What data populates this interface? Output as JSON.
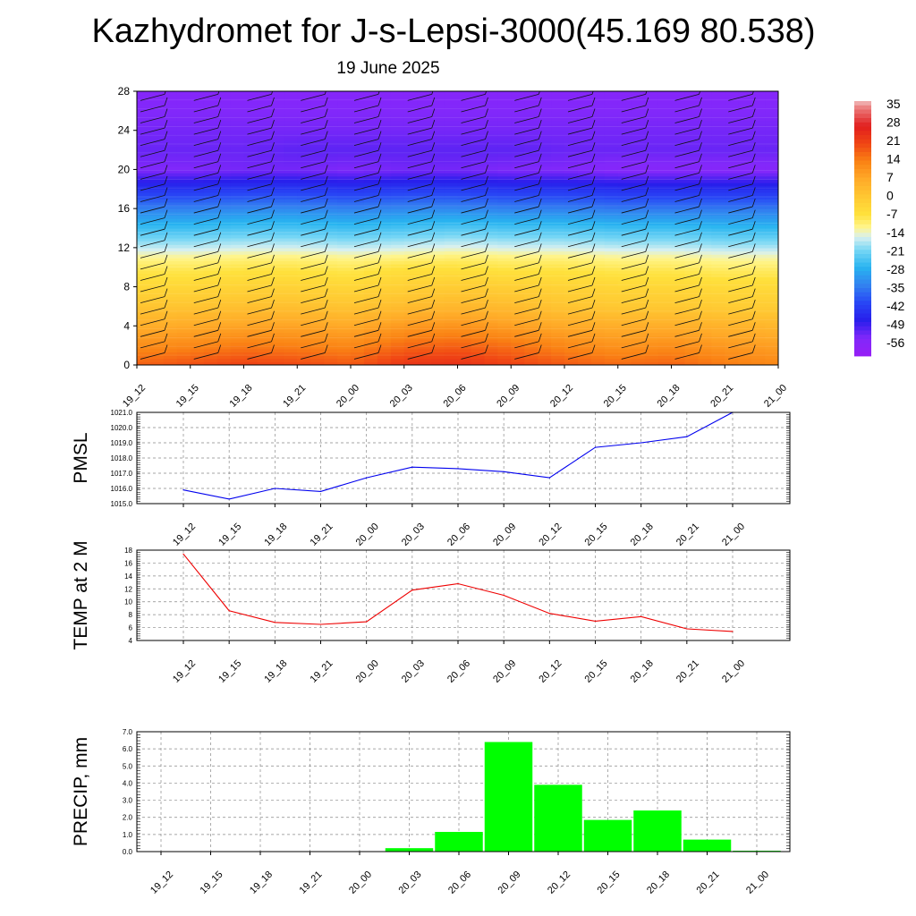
{
  "title": "Kazhydromet for J-s-Lepsi-3000(45.169 80.538)",
  "subtitle": "19 June 2025",
  "time_labels": [
    "19_12",
    "19_15",
    "19_18",
    "19_21",
    "20_00",
    "20_03",
    "20_06",
    "20_09",
    "20_12",
    "20_15",
    "20_18",
    "20_21",
    "21_00"
  ],
  "chart_data": [
    {
      "type": "heatmap",
      "description_of_values": "temperature by height with wind barbs",
      "x": [
        "19_12",
        "19_15",
        "19_18",
        "19_21",
        "20_00",
        "20_03",
        "20_06",
        "20_09",
        "20_12",
        "20_15",
        "20_18",
        "20_21",
        "21_00"
      ],
      "ylim": [
        0,
        28
      ],
      "yticks": [
        0,
        4,
        8,
        12,
        16,
        20,
        24,
        28
      ],
      "y_levels": [
        0,
        2,
        4,
        6,
        8,
        10,
        11,
        12,
        14,
        16,
        18,
        20,
        22,
        24,
        26,
        28
      ],
      "z": [
        [
          18,
          20,
          22,
          21,
          19,
          24,
          25,
          22,
          19,
          17,
          18,
          15,
          13
        ],
        [
          12,
          13,
          15,
          14,
          13,
          17,
          18,
          16,
          13,
          11,
          12,
          10,
          9
        ],
        [
          6,
          7,
          8,
          8,
          7,
          10,
          11,
          9,
          7,
          6,
          6,
          5,
          4
        ],
        [
          1,
          1,
          2,
          2,
          1,
          3,
          4,
          3,
          1,
          0,
          0,
          -1,
          -1
        ],
        [
          -4,
          -4,
          -3,
          -3,
          -4,
          -2,
          -1,
          -2,
          -3,
          -4,
          -4,
          -5,
          -5
        ],
        [
          -9,
          -9,
          -8,
          -8,
          -9,
          -7,
          -7,
          -8,
          -8,
          -9,
          -9,
          -10,
          -10
        ],
        [
          -12,
          -12,
          -11,
          -11,
          -12,
          -11,
          -10,
          -11,
          -11,
          -12,
          -12,
          -13,
          -13
        ],
        [
          -17,
          -17,
          -16,
          -16,
          -17,
          -16,
          -15,
          -16,
          -16,
          -17,
          -17,
          -18,
          -18
        ],
        [
          -26,
          -26,
          -25,
          -25,
          -26,
          -25,
          -24,
          -25,
          -25,
          -26,
          -26,
          -27,
          -27
        ],
        [
          -35,
          -35,
          -34,
          -34,
          -35,
          -34,
          -34,
          -35,
          -35,
          -36,
          -36,
          -36,
          -36
        ],
        [
          -45,
          -45,
          -44,
          -44,
          -45,
          -44,
          -44,
          -45,
          -45,
          -46,
          -46,
          -46,
          -46
        ],
        [
          -56,
          -56,
          -55,
          -55,
          -56,
          -55,
          -55,
          -56,
          -56,
          -57,
          -57,
          -57,
          -57
        ],
        [
          -54,
          -54,
          -54,
          -53,
          -53,
          -53,
          -53,
          -53,
          -54,
          -54,
          -54,
          -54,
          -54
        ],
        [
          -55,
          -55,
          -55,
          -55,
          -55,
          -55,
          -55,
          -55,
          -55,
          -55,
          -55,
          -55,
          -55
        ],
        [
          -56,
          -56,
          -56,
          -56,
          -56,
          -56,
          -56,
          -56,
          -56,
          -56,
          -56,
          -56,
          -56
        ],
        [
          -57,
          -57,
          -57,
          -57,
          -57,
          -57,
          -57,
          -57,
          -57,
          -57,
          -57,
          -57,
          -57
        ]
      ],
      "colorbar": {
        "labels": [
          "35",
          "28",
          "21",
          "14",
          "7",
          "0",
          "-7",
          "-14",
          "-21",
          "-28",
          "-35",
          "-42",
          "-49",
          "-56"
        ],
        "min": -63,
        "max": 38
      }
    },
    {
      "type": "line",
      "ylabel": "PMSL",
      "ylim": [
        1015.0,
        1021.0
      ],
      "yticks": [
        "1015.0",
        "1016.0",
        "1017.0",
        "1018.0",
        "1019.0",
        "1020.0",
        "1021.0"
      ],
      "x": [
        "19_12",
        "19_15",
        "19_18",
        "19_21",
        "20_00",
        "20_03",
        "20_06",
        "20_09",
        "20_12",
        "20_15",
        "20_18",
        "20_21",
        "21_00"
      ],
      "values": [
        1015.9,
        1015.3,
        1016.0,
        1015.8,
        1016.7,
        1017.4,
        1017.3,
        1017.1,
        1016.7,
        1018.7,
        1019.0,
        1019.4,
        1021.0
      ],
      "color": "#0000ee"
    },
    {
      "type": "line",
      "ylabel": "TEMP at 2 M",
      "ylim": [
        4,
        18
      ],
      "yticks": [
        "4",
        "6",
        "8",
        "10",
        "12",
        "14",
        "16",
        "18"
      ],
      "x": [
        "19_12",
        "19_15",
        "19_18",
        "19_21",
        "20_00",
        "20_03",
        "20_06",
        "20_09",
        "20_12",
        "20_15",
        "20_18",
        "20_21",
        "21_00"
      ],
      "values": [
        17.4,
        8.6,
        6.8,
        6.5,
        6.9,
        11.8,
        12.8,
        11.0,
        8.2,
        7.0,
        7.7,
        5.8,
        5.4
      ],
      "color": "#ee0000"
    },
    {
      "type": "bar",
      "ylabel": "PRECIP, mm",
      "ylim": [
        0,
        7.0
      ],
      "yticks": [
        "0.0",
        "1.0",
        "2.0",
        "3.0",
        "4.0",
        "5.0",
        "6.0",
        "7.0"
      ],
      "categories": [
        "19_12",
        "19_15",
        "19_18",
        "19_21",
        "20_00",
        "20_03",
        "20_06",
        "20_09",
        "20_12",
        "20_15",
        "20_18",
        "20_21",
        "21_00"
      ],
      "values": [
        0.0,
        0.0,
        0.0,
        0.0,
        0.0,
        0.2,
        1.15,
        6.4,
        3.9,
        1.85,
        2.4,
        0.7,
        0.05
      ],
      "color": "#00ff00"
    }
  ]
}
